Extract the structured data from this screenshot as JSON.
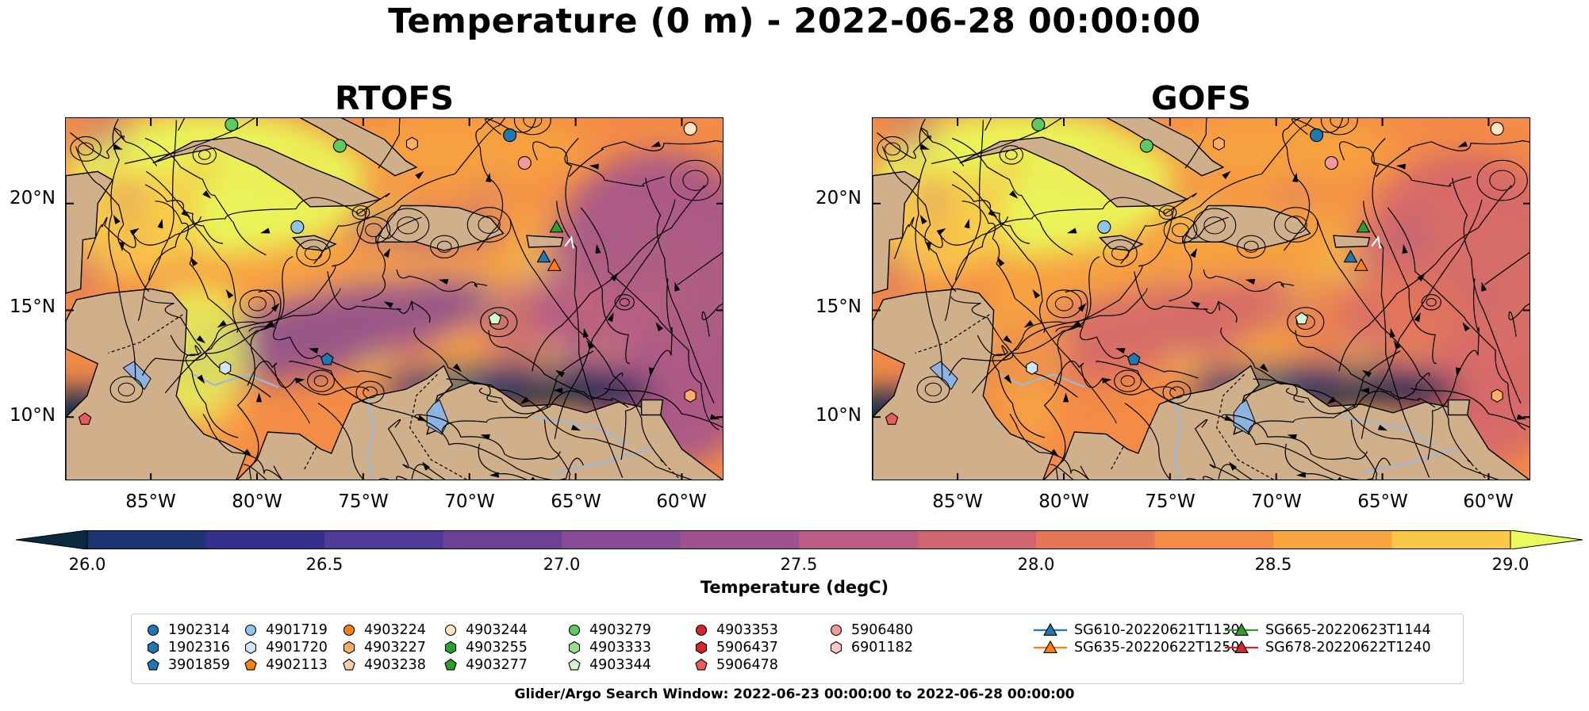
{
  "figure": {
    "title": "Temperature (0 m) - 2022-06-28 00:00:00",
    "footer": "Glider/Argo Search Window: 2022-06-23 00:00:00 to 2022-06-28 00:00:00"
  },
  "panels": [
    {
      "title": "RTOFS",
      "variant": "rtofs"
    },
    {
      "title": "GOFS",
      "variant": "gofs"
    }
  ],
  "axes": {
    "y_ticks": [
      "20°N",
      "15°N",
      "10°N"
    ],
    "x_ticks": [
      "85°W",
      "80°W",
      "75°W",
      "70°W",
      "65°W",
      "60°W"
    ]
  },
  "colorbar": {
    "label": "Temperature (degC)",
    "ticks": [
      "26.0",
      "26.5",
      "27.0",
      "27.5",
      "28.0",
      "28.5",
      "29.0"
    ],
    "min": 26.0,
    "max": 29.0,
    "step": 0.25,
    "extend": "both",
    "colors": [
      "#0b2a3f",
      "#1b3474",
      "#35308e",
      "#503a98",
      "#6b4196",
      "#874a94",
      "#a05290",
      "#bb5c85",
      "#d1656f",
      "#e67658",
      "#f38c46",
      "#f8a53e",
      "#f9c848",
      "#e9fb5a"
    ],
    "land_color": "#cfb08a",
    "lake_color": "#8fb3e0"
  },
  "legend": [
    {
      "label": "1902314",
      "marker": "circle",
      "color": "#1f77b4"
    },
    {
      "label": "1902316",
      "marker": "hexagon",
      "color": "#1f77b4"
    },
    {
      "label": "3901859",
      "marker": "pentagon",
      "color": "#1f77b4"
    },
    {
      "label": "4901719",
      "marker": "circle",
      "color": "#8fc4ef"
    },
    {
      "label": "4901720",
      "marker": "hexagon",
      "color": "#cfe6f8"
    },
    {
      "label": "4902113",
      "marker": "pentagon",
      "color": "#ff7f0e"
    },
    {
      "label": "4903224",
      "marker": "circle",
      "color": "#ff7f0e"
    },
    {
      "label": "4903227",
      "marker": "hexagon",
      "color": "#ffad66"
    },
    {
      "label": "4903238",
      "marker": "pentagon",
      "color": "#ffd0a1"
    },
    {
      "label": "4903244",
      "marker": "circle",
      "color": "#ffe4c4"
    },
    {
      "label": "4903255",
      "marker": "hexagon",
      "color": "#2ca02c"
    },
    {
      "label": "4903277",
      "marker": "pentagon",
      "color": "#2ca02c"
    },
    {
      "label": "4903279",
      "marker": "circle",
      "color": "#5ec95e"
    },
    {
      "label": "4903333",
      "marker": "hexagon",
      "color": "#98df8a"
    },
    {
      "label": "4903344",
      "marker": "pentagon",
      "color": "#d9f5d0"
    },
    {
      "label": "4903353",
      "marker": "circle",
      "color": "#d62728"
    },
    {
      "label": "5906437",
      "marker": "hexagon",
      "color": "#d62728"
    },
    {
      "label": "5906478",
      "marker": "pentagon",
      "color": "#e85c5e"
    },
    {
      "label": "5906480",
      "marker": "circle",
      "color": "#f09a9a"
    },
    {
      "label": "6901182",
      "marker": "hexagon",
      "color": "#f8c8c8"
    },
    {
      "label": "SG610-20220621T1130",
      "marker": "triangle-line",
      "color": "#1f77b4"
    },
    {
      "label": "SG635-20220622T1250",
      "marker": "triangle-line",
      "color": "#ff7f0e"
    },
    {
      "label": "SG665-20220623T1144",
      "marker": "triangle-line",
      "color": "#2ca02c"
    },
    {
      "label": "SG678-20220622T1240",
      "marker": "triangle-line",
      "color": "#d62728"
    }
  ]
}
